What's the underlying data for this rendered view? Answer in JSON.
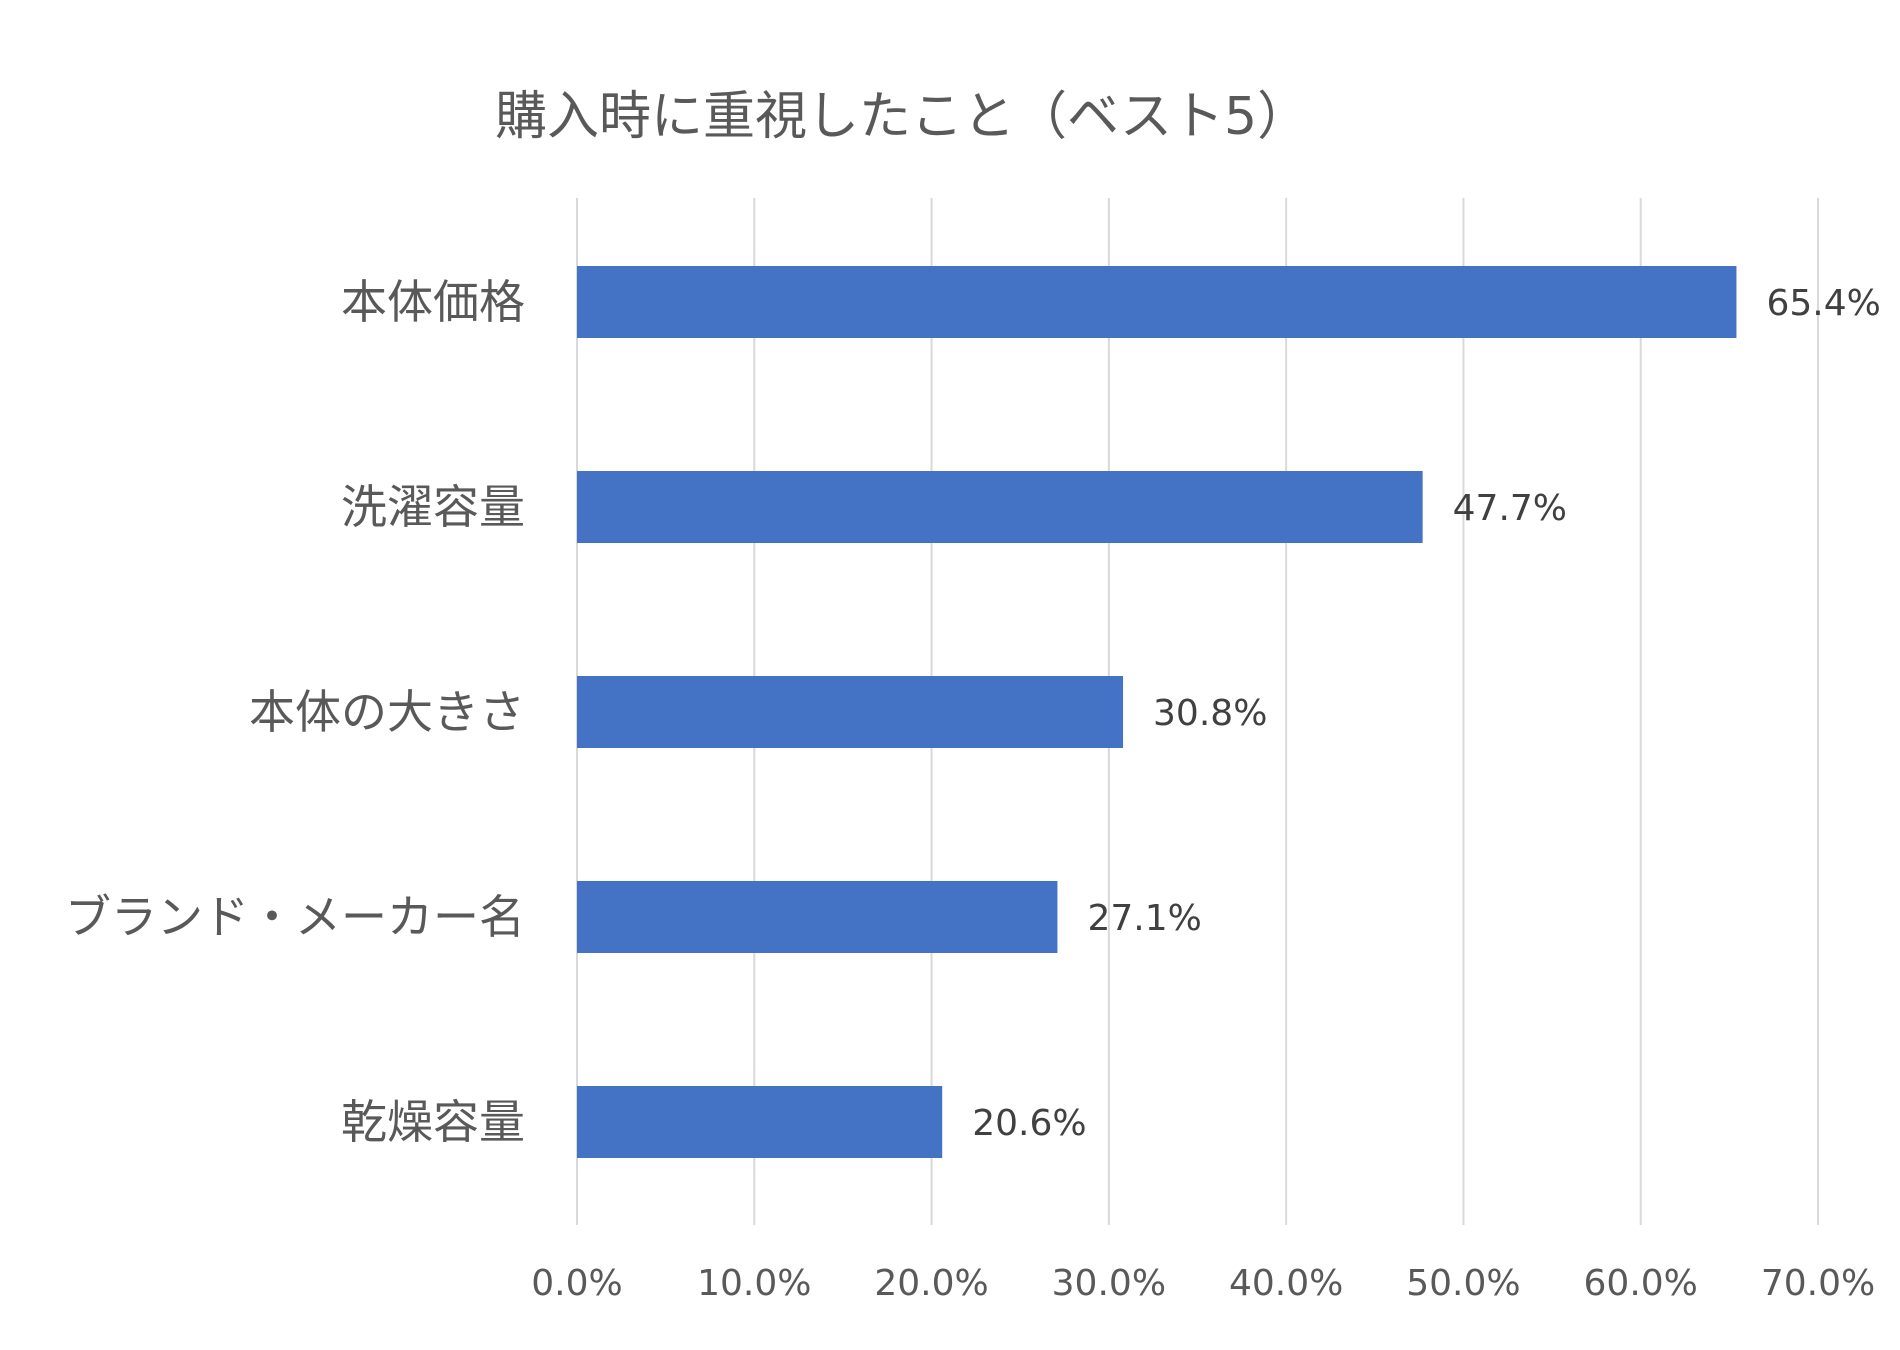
{
  "chart_data": {
    "type": "bar",
    "orientation": "horizontal",
    "title": "購入時に重視したこと（ベスト5）",
    "categories": [
      "本体価格",
      "洗濯容量",
      "本体の大きさ",
      "ブランド・メーカー名",
      "乾燥容量"
    ],
    "values": [
      65.4,
      47.7,
      30.8,
      27.1,
      20.6
    ],
    "value_labels": [
      "65.4%",
      "47.7%",
      "30.8%",
      "27.1%",
      "20.6%"
    ],
    "xlim": [
      0,
      70
    ],
    "x_ticks": [
      0,
      10,
      20,
      30,
      40,
      50,
      60,
      70
    ],
    "x_tick_labels": [
      "0.0%",
      "10.0%",
      "20.0%",
      "30.0%",
      "40.0%",
      "50.0%",
      "60.0%",
      "70.0%"
    ],
    "grid": true,
    "legend": "none",
    "bar_color": "#4472c4"
  }
}
